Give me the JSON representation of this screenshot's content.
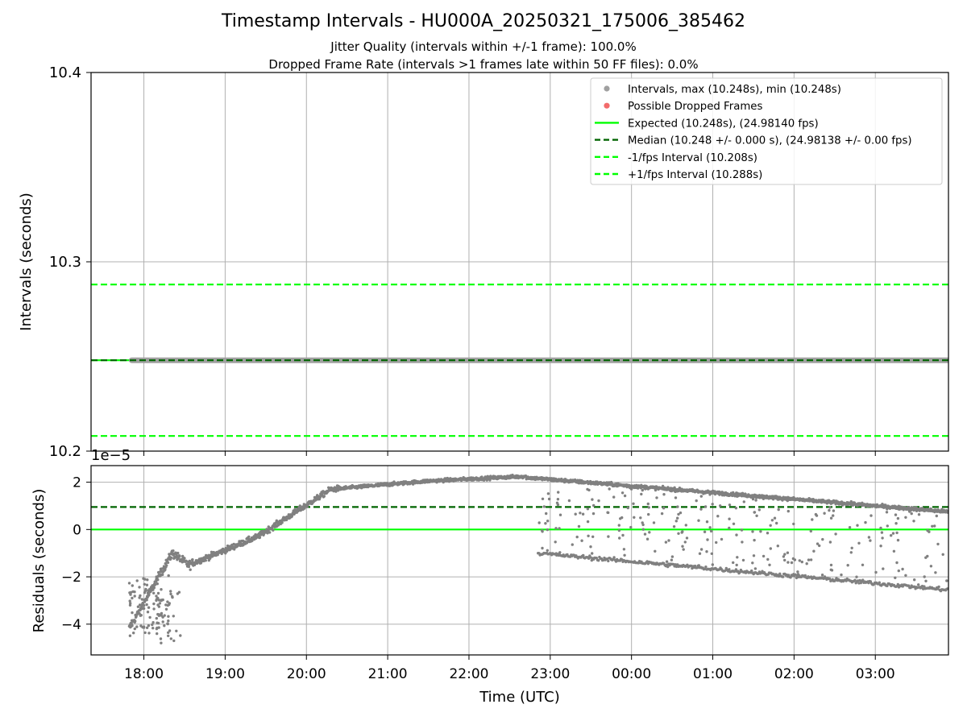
{
  "chart_data": {
    "type": "scatter",
    "title": "Timestamp Intervals - HU000A_20250321_175006_385462",
    "subtitle_lines": [
      "Jitter Quality (intervals within +/-1 frame): 100.0%",
      "Dropped Frame Rate (intervals >1 frames late within 50 FF files): 0.0%"
    ],
    "xlabel": "Time (UTC)",
    "x_tick_labels": [
      "18:00",
      "19:00",
      "20:00",
      "21:00",
      "22:00",
      "23:00",
      "00:00",
      "01:00",
      "02:00",
      "03:00"
    ],
    "x_range_hours_since_1800": [
      -0.65,
      3.93,
      9.9
    ],
    "panels": [
      {
        "name": "intervals",
        "ylabel": "Intervals (seconds)",
        "ylim": [
          10.2,
          10.4
        ],
        "y_tick_labels": [
          "10.2",
          "10.3",
          "10.4"
        ],
        "grid": true,
        "legend_placement": "top-right",
        "legend": [
          {
            "label": "Intervals, max (10.248s), min (10.248s)",
            "style": "dot",
            "color": "#a0a0a0"
          },
          {
            "label": "Possible Dropped Frames",
            "style": "dot",
            "color": "#f26b6b"
          },
          {
            "label": "Expected (10.248s), (24.98140 fps)",
            "style": "solid",
            "color": "#00ff00"
          },
          {
            "label": "Median (10.248 +/- 0.000 s), (24.98138 +/- 0.00 fps)",
            "style": "dashed",
            "color": "#006400"
          },
          {
            "label": "-1/fps Interval (10.208s)",
            "style": "dashed",
            "color": "#00ff00"
          },
          {
            "label": "+1/fps Interval (10.288s)",
            "style": "dashed",
            "color": "#00ff00"
          }
        ],
        "lines": {
          "expected": 10.248,
          "median": 10.248,
          "minus_1fps": 10.208,
          "plus_1fps": 10.288
        },
        "intervals": {
          "value": 10.248,
          "x_start": -0.15,
          "x_end": 9.9
        }
      },
      {
        "name": "residuals",
        "ylabel": "Residuals (seconds)",
        "scale_label": "1e−5",
        "ylim": [
          -5.3,
          2.7
        ],
        "y_tick_values": [
          2,
          0,
          -2,
          -4
        ],
        "y_tick_labels": [
          "2",
          "0",
          "−2",
          "−4"
        ],
        "grid": true,
        "lines": {
          "expected": 0,
          "median": 0.95
        }
      }
    ],
    "colors": {
      "points": "#808080",
      "interval_band": "#a0a0a0",
      "expected": "#00ff00",
      "median": "#006400",
      "fps_bounds": "#00ff00",
      "grid": "#b0b0b0"
    }
  }
}
